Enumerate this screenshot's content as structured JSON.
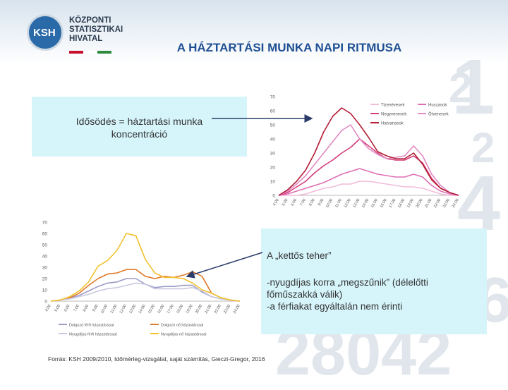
{
  "logo": {
    "abbr": "KSH",
    "lines": [
      "KÖZPONTI",
      "STATISZTIKAI",
      "HIVATAL"
    ]
  },
  "title": "A HÁZTARTÁSI MUNKA NAPI RITMUSA",
  "box_top": {
    "lines": [
      "Idősödés = háztartási munka",
      "koncentráció"
    ]
  },
  "box_bottom": {
    "heading": "A „kettős teher”",
    "line1": "-nyugdíjas korra „megszűnik” (délelőtti",
    "line2": "főműszakká válik)",
    "line3": "-a férfiakat egyáltalán nem érinti"
  },
  "source": "Forrás: KSH 2009/2010, Időmérleg-vizsgálat, saját számítás, Gieczi-Gregor, 2016",
  "colors": {
    "accent_blue": "#1f4f93",
    "box_fill": "#d6f5fb"
  },
  "chart_data": [
    {
      "type": "line",
      "x": [
        "4:00",
        "5:00",
        "6:00",
        "7:00",
        "8:00",
        "9:00",
        "10:00",
        "11:00",
        "12:00",
        "13:00",
        "14:00",
        "15:00",
        "16:00",
        "17:00",
        "18:00",
        "19:00",
        "20:00",
        "21:00",
        "22:00",
        "23:00",
        "24:00"
      ],
      "ylim": [
        0,
        70
      ],
      "yticks": [
        0,
        10,
        20,
        30,
        40,
        50,
        60,
        70
      ],
      "legend_position": "top-right",
      "series": [
        {
          "name": "Tizenévesek",
          "color": "#f2bcd9",
          "values": [
            0,
            0,
            0,
            1,
            3,
            5,
            6,
            8,
            8,
            10,
            10,
            9,
            8,
            7,
            6,
            6,
            5,
            3,
            1,
            0,
            0
          ]
        },
        {
          "name": "Huszasok",
          "color": "#de6fb3",
          "values": [
            0,
            1,
            3,
            5,
            7,
            9,
            12,
            15,
            17,
            19,
            17,
            15,
            14,
            13,
            13,
            15,
            13,
            7,
            3,
            1,
            0
          ]
        },
        {
          "name": "Negyvenesek",
          "color": "#d43c7a",
          "values": [
            0,
            2,
            6,
            10,
            16,
            21,
            25,
            30,
            34,
            40,
            35,
            30,
            26,
            25,
            25,
            28,
            23,
            12,
            5,
            2,
            0
          ]
        },
        {
          "name": "Ötvenesek",
          "color": "#e089c2",
          "values": [
            0,
            3,
            8,
            14,
            22,
            30,
            38,
            46,
            50,
            40,
            33,
            29,
            26,
            27,
            28,
            35,
            28,
            15,
            7,
            2,
            0
          ]
        },
        {
          "name": "Hatvanasok",
          "color": "#b31d35",
          "values": [
            0,
            4,
            10,
            18,
            30,
            45,
            56,
            62,
            58,
            50,
            41,
            31,
            28,
            26,
            26,
            30,
            22,
            11,
            5,
            2,
            0
          ]
        }
      ]
    },
    {
      "type": "line",
      "x": [
        "4:00",
        "5:00",
        "6:00",
        "7:00",
        "8:00",
        "9:00",
        "10:00",
        "11:00",
        "12:00",
        "13:00",
        "14:00",
        "15:00",
        "16:00",
        "17:00",
        "18:00",
        "19:00",
        "20:00",
        "21:00",
        "22:00",
        "23:00",
        "24:00"
      ],
      "ylim": [
        0,
        70
      ],
      "yticks": [
        0,
        10,
        20,
        30,
        40,
        50,
        60,
        70
      ],
      "legend_position": "bottom",
      "series": [
        {
          "name": "Dolgozó férfi házastárssal",
          "color": "#9b9bc9",
          "values": [
            0,
            1,
            3,
            5,
            9,
            13,
            16,
            17,
            20,
            20,
            15,
            12,
            13,
            13,
            14,
            14,
            8,
            4,
            2,
            1,
            0
          ]
        },
        {
          "name": "Dolgozó nő házastárssal",
          "color": "#e07b2a",
          "values": [
            0,
            1,
            3,
            7,
            14,
            20,
            24,
            25,
            28,
            28,
            22,
            20,
            22,
            21,
            23,
            26,
            22,
            7,
            3,
            1,
            0
          ]
        },
        {
          "name": "Nyugdíjas férfi házastárssal",
          "color": "#c8c8e0",
          "values": [
            0,
            1,
            2,
            4,
            6,
            9,
            11,
            12,
            14,
            16,
            15,
            11,
            11,
            11,
            11,
            12,
            9,
            4,
            2,
            1,
            0
          ]
        },
        {
          "name": "Nyugdíjas nő házastárssal",
          "color": "#f2c12e",
          "values": [
            0,
            1,
            4,
            9,
            17,
            31,
            36,
            45,
            60,
            58,
            37,
            25,
            21,
            21,
            20,
            16,
            10,
            7,
            3,
            1,
            0
          ]
        }
      ]
    }
  ]
}
